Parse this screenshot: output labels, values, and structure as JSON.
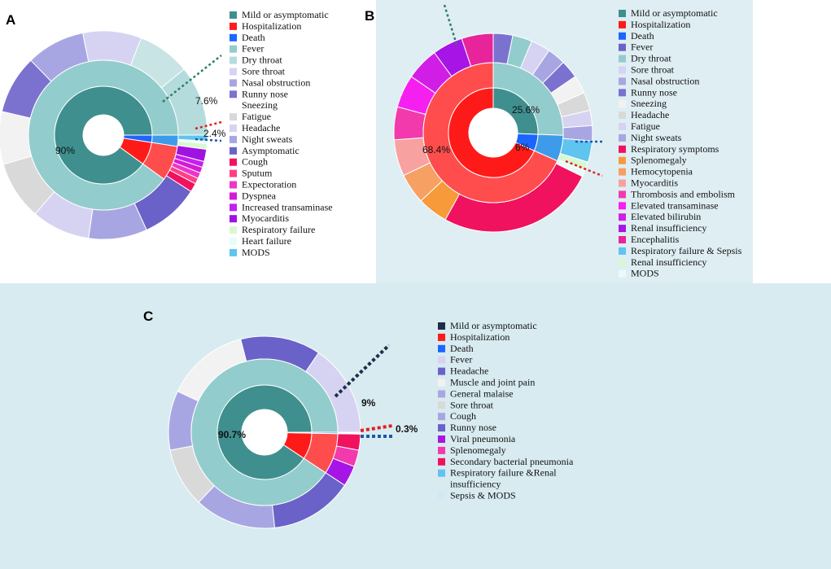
{
  "colors": {
    "panel_a_bg": "#ffffff",
    "panel_b_bg": "#dfeef3",
    "panel_c_bg": "#d8ebf0"
  },
  "chart_data": [
    {
      "panel": "A",
      "type": "sunburst",
      "inner_ring": [
        {
          "label": "Mild or asymptomatic",
          "value": 90,
          "color": "#3f8f8f"
        },
        {
          "label": "Hospitalization",
          "value": 7.6,
          "color": "#ff1a1a"
        },
        {
          "label": "Death",
          "value": 2.4,
          "color": "#1a66ff"
        }
      ],
      "annotations": {
        "inner_main": "90%",
        "hosp": "7.6%",
        "death": "2.4%"
      },
      "middle_ring": [
        {
          "label": "Mild or asymptomatic",
          "value": 90,
          "color": "#93cccc"
        },
        {
          "label": "Hospitalization",
          "value": 7.6,
          "color": "#ff4d4d"
        },
        {
          "label": "Death",
          "value": 2.4,
          "color": "#3d9be9"
        }
      ],
      "outer_ring": [
        {
          "label": "Fever",
          "value": 12,
          "color": "#b5dcdc"
        },
        {
          "label": "Dry throat",
          "value": 9,
          "color": "#c8e4e4"
        },
        {
          "label": "Sore throat",
          "value": 10,
          "color": "#d6d3f2"
        },
        {
          "label": "Nasal obstruction",
          "value": 10,
          "color": "#a8a6e2"
        },
        {
          "label": "Runny nose",
          "value": 10,
          "color": "#7b72d0"
        },
        {
          "label": "Sneezing",
          "value": 9,
          "color": "#f2f2f2"
        },
        {
          "label": "Fatigue",
          "value": 10,
          "color": "#d9d9d9"
        },
        {
          "label": "Headache",
          "value": 10,
          "color": "#d6d3f2"
        },
        {
          "label": "Night sweats",
          "value": 10,
          "color": "#a8a6e2"
        },
        {
          "label": "Asymptomatic",
          "value": 10,
          "color": "#6a62c8"
        },
        {
          "label": "Cough",
          "value": 1.5,
          "color": "#f0125e"
        },
        {
          "label": "Sputum",
          "value": 1,
          "color": "#ff3f86"
        },
        {
          "label": "Expectoration",
          "value": 1,
          "color": "#ee35c8"
        },
        {
          "label": "Dyspnea",
          "value": 1,
          "color": "#d41ad6"
        },
        {
          "label": "Increased transaminase",
          "value": 1,
          "color": "#c41fee"
        },
        {
          "label": "Myocarditis",
          "value": 2.1,
          "color": "#9f13e0"
        },
        {
          "label": "Respiratory failure",
          "value": 1,
          "color": "#d9f7d3"
        },
        {
          "label": "Heart failure",
          "value": 0.4,
          "color": "#e8fbfb"
        },
        {
          "label": "MODS",
          "value": 1,
          "color": "#5fc4ef"
        }
      ],
      "legend": [
        {
          "label": "Mild or asymptomatic",
          "color": "#3f8f8f"
        },
        {
          "label": "Hospitalization",
          "color": "#ff1a1a"
        },
        {
          "label": "Death",
          "color": "#1a66ff"
        },
        {
          "label": "Fever",
          "color": "#93cccc"
        },
        {
          "label": "Dry throat",
          "color": "#b5dcdc"
        },
        {
          "label": "Sore throat",
          "color": "#d6d3f2"
        },
        {
          "label": "Nasal obstruction",
          "color": "#a8a6e2"
        },
        {
          "label": "Runny nose",
          "color": "#7b72d0"
        },
        {
          "label": "Sneezing",
          "color": "#ffffff"
        },
        {
          "label": "Fatigue",
          "color": "#d9d9d9"
        },
        {
          "label": "Headache",
          "color": "#d6d3f2"
        },
        {
          "label": "Night sweats",
          "color": "#a8a6e2"
        },
        {
          "label": "Asymptomatic",
          "color": "#6a62c8"
        },
        {
          "label": "Cough",
          "color": "#f0125e"
        },
        {
          "label": "Sputum",
          "color": "#ff3f86"
        },
        {
          "label": "Expectoration",
          "color": "#ee35c8"
        },
        {
          "label": "Dyspnea",
          "color": "#d41ad6"
        },
        {
          "label": "Increased transaminase",
          "color": "#c41fee"
        },
        {
          "label": "Myocarditis",
          "color": "#9f13e0"
        },
        {
          "label": "Respiratory failure",
          "color": "#d9f7d3"
        },
        {
          "label": "Heart failure",
          "color": "#e8fbfb"
        },
        {
          "label": "MODS",
          "color": "#5fc4ef"
        }
      ]
    },
    {
      "panel": "B",
      "type": "sunburst",
      "inner_ring": [
        {
          "label": "Mild or asymptomatic",
          "value": 25.6,
          "color": "#3f8f8f"
        },
        {
          "label": "Death",
          "value": 6,
          "color": "#1a66ff"
        },
        {
          "label": "Hospitalization",
          "value": 68.4,
          "color": "#ff1a1a"
        }
      ],
      "annotations": {
        "mild": "25.6%",
        "death": "6%",
        "hosp": "68.4%"
      },
      "middle_ring": [
        {
          "label": "Mild or asymptomatic",
          "value": 25.6,
          "color": "#93cccc"
        },
        {
          "label": "Death",
          "value": 6,
          "color": "#3d9be9"
        },
        {
          "label": "Hospitalization",
          "value": 68.4,
          "color": "#ff4d4d"
        }
      ],
      "outer_ring": [
        {
          "label": "Fever",
          "value": 3.2,
          "color": "#7b72d0"
        },
        {
          "label": "Dry throat",
          "value": 3.2,
          "color": "#93cccc"
        },
        {
          "label": "Sore throat",
          "value": 3.2,
          "color": "#d6d3f2"
        },
        {
          "label": "Nasal obstruction",
          "value": 3.0,
          "color": "#a8a6e2"
        },
        {
          "label": "Runny nose",
          "value": 3.0,
          "color": "#7b72d0"
        },
        {
          "label": "Sneezing",
          "value": 3.0,
          "color": "#f2f2f2"
        },
        {
          "label": "Headache",
          "value": 3.0,
          "color": "#d9d9d9"
        },
        {
          "label": "Fatigue",
          "value": 2.5,
          "color": "#d6d3f2"
        },
        {
          "label": "Night sweats",
          "value": 2.5,
          "color": "#a8a6e2"
        },
        {
          "label": "Respiratory failure & Sepsis",
          "value": 3.5,
          "color": "#5fc4ef"
        },
        {
          "label": "Renal insufficiency",
          "value": 1.5,
          "color": "#d9f7d3"
        },
        {
          "label": "MODS",
          "value": 1.0,
          "color": "#e8fbfb"
        },
        {
          "label": "Respiratory symptoms",
          "value": 26,
          "color": "#f0125e"
        },
        {
          "label": "Splenomegaly",
          "value": 5,
          "color": "#f79a3a"
        },
        {
          "label": "Hemocytopenia",
          "value": 5,
          "color": "#f7a064"
        },
        {
          "label": "Myocarditis",
          "value": 6,
          "color": "#f7a1a1"
        },
        {
          "label": "Thrombosis and embolism",
          "value": 5.4,
          "color": "#f23aac"
        },
        {
          "label": "Elevated transaminase",
          "value": 5.4,
          "color": "#f520f0"
        },
        {
          "label": "Elevated bilirubin",
          "value": 5.4,
          "color": "#d11ee6"
        },
        {
          "label": "Renal insufficiency",
          "value": 5,
          "color": "#a615e6"
        },
        {
          "label": "Encephalitis",
          "value": 5.2,
          "color": "#e8249a"
        }
      ],
      "legend": [
        {
          "label": "Mild or asymptomatic",
          "color": "#3f8f8f"
        },
        {
          "label": "Hospitalization",
          "color": "#ff1a1a"
        },
        {
          "label": "Death",
          "color": "#1a66ff"
        },
        {
          "label": "Fever",
          "color": "#6a62c8"
        },
        {
          "label": "Dry throat",
          "color": "#93cccc"
        },
        {
          "label": "Sore throat",
          "color": "#d6d3f2"
        },
        {
          "label": "Nasal obstruction",
          "color": "#a8a6e2"
        },
        {
          "label": "Runny nose",
          "color": "#7b72d0"
        },
        {
          "label": "Sneezing",
          "color": "#f2f2f2"
        },
        {
          "label": "Headache",
          "color": "#d9d9d9"
        },
        {
          "label": "Fatigue",
          "color": "#d6d3f2"
        },
        {
          "label": "Night sweats",
          "color": "#a8a6e2"
        },
        {
          "label": "Respiratory symptoms",
          "color": "#f0125e"
        },
        {
          "label": "Splenomegaly",
          "color": "#f79a3a"
        },
        {
          "label": "Hemocytopenia",
          "color": "#f7a064"
        },
        {
          "label": "Myocarditis",
          "color": "#f7a1a1"
        },
        {
          "label": "Thrombosis and embolism",
          "color": "#f23aac"
        },
        {
          "label": "Elevated transaminase",
          "color": "#f520f0"
        },
        {
          "label": "Elevated bilirubin",
          "color": "#d11ee6"
        },
        {
          "label": "Renal insufficiency",
          "color": "#a615e6"
        },
        {
          "label": "Encephalitis",
          "color": "#e8249a"
        },
        {
          "label": "Respiratory failure & Sepsis",
          "color": "#5fc4ef"
        },
        {
          "label": "Renal insufficiency",
          "color": "#d9f7d3"
        },
        {
          "label": "MODS",
          "color": "#e8fbfb"
        }
      ]
    },
    {
      "panel": "C",
      "type": "sunburst",
      "inner_ring": [
        {
          "label": "Mild or asymptomatic",
          "value": 90.7,
          "color": "#3f8f8f"
        },
        {
          "label": "Hospitalization",
          "value": 9,
          "color": "#ff1a1a"
        },
        {
          "label": "Death",
          "value": 0.3,
          "color": "#1a66ff"
        }
      ],
      "annotations": {
        "inner_main": "90.7%",
        "hosp": "9%",
        "death": "0.3%"
      },
      "middle_ring": [
        {
          "label": "Mild or asymptomatic",
          "value": 90.7,
          "color": "#93cccc"
        },
        {
          "label": "Hospitalization",
          "value": 9,
          "color": "#ff4d4d"
        },
        {
          "label": "Death",
          "value": 0.3,
          "color": "#3d9be9"
        }
      ],
      "outer_ring": [
        {
          "label": "Fever",
          "value": 15.5,
          "color": "#d6d3f2"
        },
        {
          "label": "Headache",
          "value": 13.5,
          "color": "#6a62c8"
        },
        {
          "label": "Muscle and joint pain",
          "value": 14,
          "color": "#f2f2f2"
        },
        {
          "label": "General malaise",
          "value": 10,
          "color": "#a8a6e2"
        },
        {
          "label": "Sore throat",
          "value": 10,
          "color": "#d9d9d9"
        },
        {
          "label": "Cough",
          "value": 13.7,
          "color": "#a8a6e2"
        },
        {
          "label": "Runny nose",
          "value": 14,
          "color": "#6a62c8"
        },
        {
          "label": "Viral pneumonia",
          "value": 3.5,
          "color": "#a615e6"
        },
        {
          "label": "Splenomegaly",
          "value": 2.8,
          "color": "#f23aac"
        },
        {
          "label": "Secondary bacterial pneumonia",
          "value": 2.7,
          "color": "#f0125e"
        },
        {
          "label": "Respiratory failure &Renal insufficiency",
          "value": 0.15,
          "color": "#5fc4ef"
        },
        {
          "label": "Sepsis & MODS",
          "value": 0.15,
          "color": "#cfe9f5"
        }
      ],
      "legend": [
        {
          "label": "Mild or asymptomatic",
          "color": "#1c2e4a"
        },
        {
          "label": "Hospitalization",
          "color": "#ff1a1a"
        },
        {
          "label": "Death",
          "color": "#1a66ff"
        },
        {
          "label": "Fever",
          "color": "#d6d3f2"
        },
        {
          "label": "Headache",
          "color": "#6a62c8"
        },
        {
          "label": "Muscle and joint pain",
          "color": "#f2f2f2"
        },
        {
          "label": "General malaise",
          "color": "#a8a6e2"
        },
        {
          "label": "Sore throat",
          "color": "#d9d9d9"
        },
        {
          "label": "Cough",
          "color": "#a8a6e2"
        },
        {
          "label": "Runny nose",
          "color": "#6a62c8"
        },
        {
          "label": "Viral pneumonia",
          "color": "#a615e6"
        },
        {
          "label": "Splenomegaly",
          "color": "#f23aac"
        },
        {
          "label": "Secondary bacterial pneumonia",
          "color": "#f0125e"
        },
        {
          "label": "Respiratory failure &Renal",
          "color": "#5fc4ef"
        },
        {
          "label": "insufficiency",
          "color": null
        },
        {
          "label": "Sepsis & MODS",
          "color": "#cfe9f5"
        }
      ]
    }
  ],
  "panels": {
    "a": {
      "letter": "A"
    },
    "b": {
      "letter": "B"
    },
    "c": {
      "letter": "C"
    }
  }
}
